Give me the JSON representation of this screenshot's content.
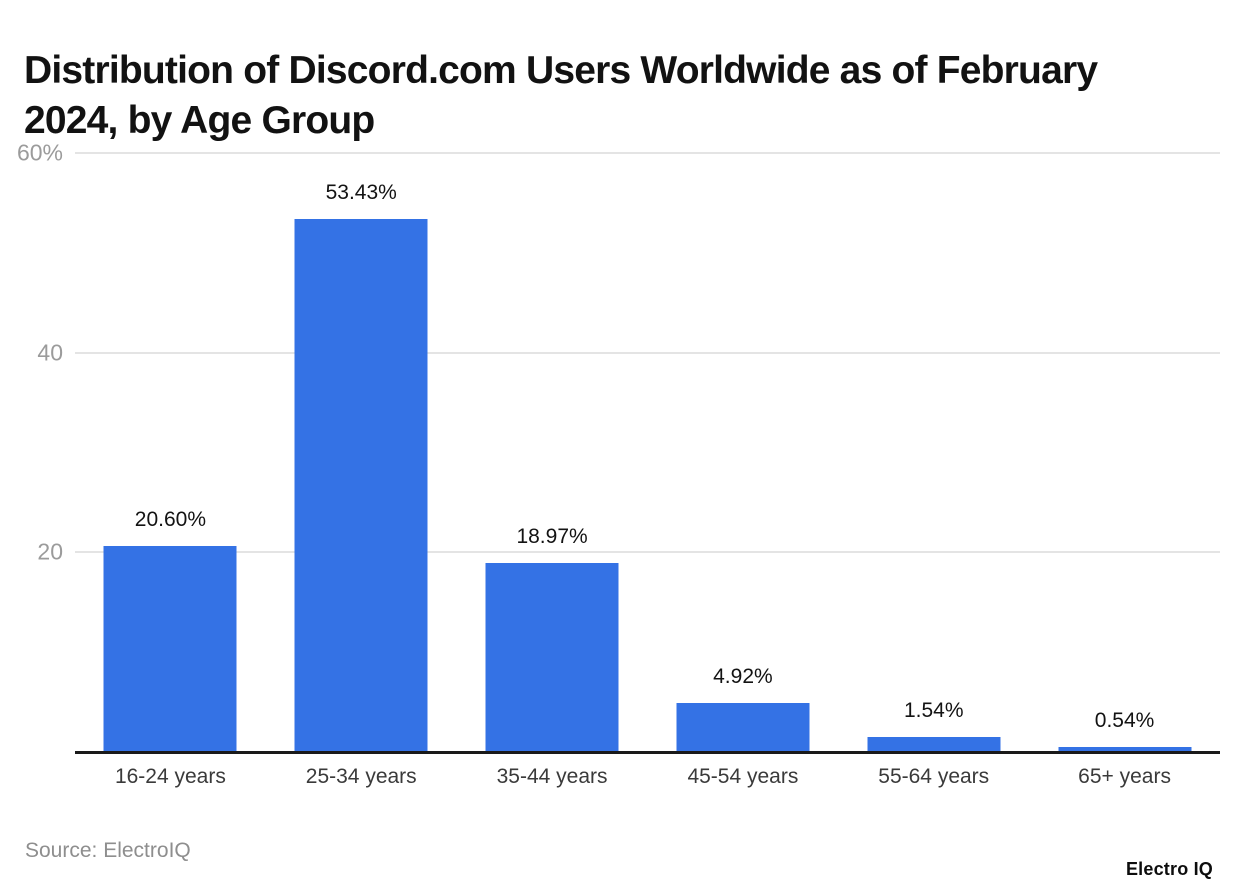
{
  "title": {
    "full": "Distribution of Discord.com Users Worldwide as of February 2024, by Age Group",
    "line1": "Distribution of Discord.com Users Worldwide as of February",
    "line2": "2024, by Age Group"
  },
  "source": "Source: ElectroIQ",
  "brand": "Electro IQ",
  "colors": {
    "bar": "#3472e5",
    "gridline": "#e4e4e4",
    "ytick_label": "#9b9b9b",
    "category_label": "#3a3a3a",
    "value_label": "#131313",
    "baseline": "#1a1a1a",
    "title": "#121212",
    "source": "#8e8e8e"
  },
  "chart_data": {
    "type": "bar",
    "title": "Distribution of Discord.com Users Worldwide as of February 2024, by Age Group",
    "categories": [
      "16-24 years",
      "25-34 years",
      "35-44 years",
      "45-54 years",
      "55-64 years",
      "65+ years"
    ],
    "values": [
      20.6,
      53.43,
      18.97,
      4.92,
      1.54,
      0.54
    ],
    "value_labels": [
      "20.60%",
      "53.43%",
      "18.97%",
      "4.92%",
      "1.54%",
      "0.54%"
    ],
    "xlabel": "",
    "ylabel": "",
    "ylim": [
      0,
      60
    ],
    "yticks": [
      {
        "value": 20,
        "label": "20"
      },
      {
        "value": 40,
        "label": "40"
      },
      {
        "value": 60,
        "label": "60%"
      }
    ],
    "grid": true,
    "legend": false,
    "bar_color": "#3472e5"
  }
}
